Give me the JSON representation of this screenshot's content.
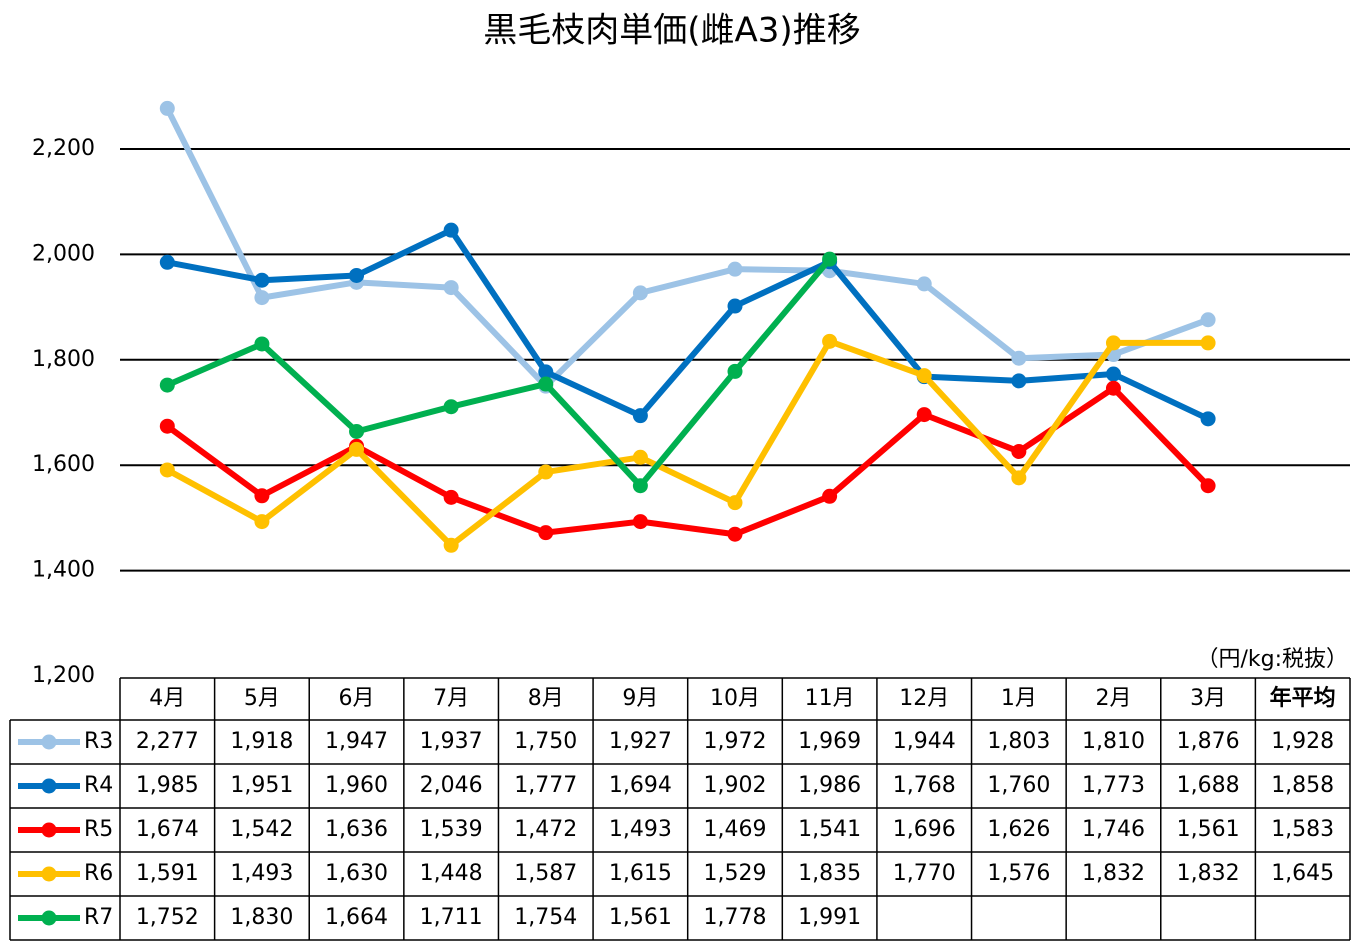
{
  "chart_data": {
    "type": "line",
    "title": "黒毛枝肉単価(雌A3)推移",
    "unit_label": "（円/kg:税抜）",
    "categories": [
      "4月",
      "5月",
      "6月",
      "7月",
      "8月",
      "9月",
      "10月",
      "11月",
      "12月",
      "1月",
      "2月",
      "3月"
    ],
    "average_header": "年平均",
    "ylim": [
      1200,
      2400
    ],
    "yticks": [
      {
        "value": 1200,
        "label": "1,200"
      },
      {
        "value": 1400,
        "label": "1,400"
      },
      {
        "value": 1600,
        "label": "1,600"
      },
      {
        "value": 1800,
        "label": "1,800"
      },
      {
        "value": 2000,
        "label": "2,000"
      },
      {
        "value": 2200,
        "label": "2,200"
      }
    ],
    "grid": true,
    "series": [
      {
        "name": "R3",
        "color": "#9dc3e6",
        "values": [
          2277,
          1918,
          1947,
          1937,
          1750,
          1927,
          1972,
          1969,
          1944,
          1803,
          1810,
          1876
        ],
        "value_labels": [
          "2,277",
          "1,918",
          "1,947",
          "1,937",
          "1,750",
          "1,927",
          "1,972",
          "1,969",
          "1,944",
          "1,803",
          "1,810",
          "1,876"
        ],
        "average": 1928,
        "average_label": "1,928"
      },
      {
        "name": "R4",
        "color": "#0070c0",
        "values": [
          1985,
          1951,
          1960,
          2046,
          1777,
          1694,
          1902,
          1986,
          1768,
          1760,
          1773,
          1688
        ],
        "value_labels": [
          "1,985",
          "1,951",
          "1,960",
          "2,046",
          "1,777",
          "1,694",
          "1,902",
          "1,986",
          "1,768",
          "1,760",
          "1,773",
          "1,688"
        ],
        "average": 1858,
        "average_label": "1,858"
      },
      {
        "name": "R5",
        "color": "#ff0000",
        "values": [
          1674,
          1542,
          1636,
          1539,
          1472,
          1493,
          1469,
          1541,
          1696,
          1626,
          1746,
          1561
        ],
        "value_labels": [
          "1,674",
          "1,542",
          "1,636",
          "1,539",
          "1,472",
          "1,493",
          "1,469",
          "1,541",
          "1,696",
          "1,626",
          "1,746",
          "1,561"
        ],
        "average": 1583,
        "average_label": "1,583"
      },
      {
        "name": "R6",
        "color": "#ffc000",
        "values": [
          1591,
          1493,
          1630,
          1448,
          1587,
          1615,
          1529,
          1835,
          1770,
          1576,
          1832,
          1832
        ],
        "value_labels": [
          "1,591",
          "1,493",
          "1,630",
          "1,448",
          "1,587",
          "1,615",
          "1,529",
          "1,835",
          "1,770",
          "1,576",
          "1,832",
          "1,832"
        ],
        "average": 1645,
        "average_label": "1,645"
      },
      {
        "name": "R7",
        "color": "#00b050",
        "values": [
          1752,
          1830,
          1664,
          1711,
          1754,
          1561,
          1778,
          1991,
          null,
          null,
          null,
          null
        ],
        "value_labels": [
          "1,752",
          "1,830",
          "1,664",
          "1,711",
          "1,754",
          "1,561",
          "1,778",
          "1,991",
          null,
          null,
          null,
          null
        ]
      }
    ]
  }
}
